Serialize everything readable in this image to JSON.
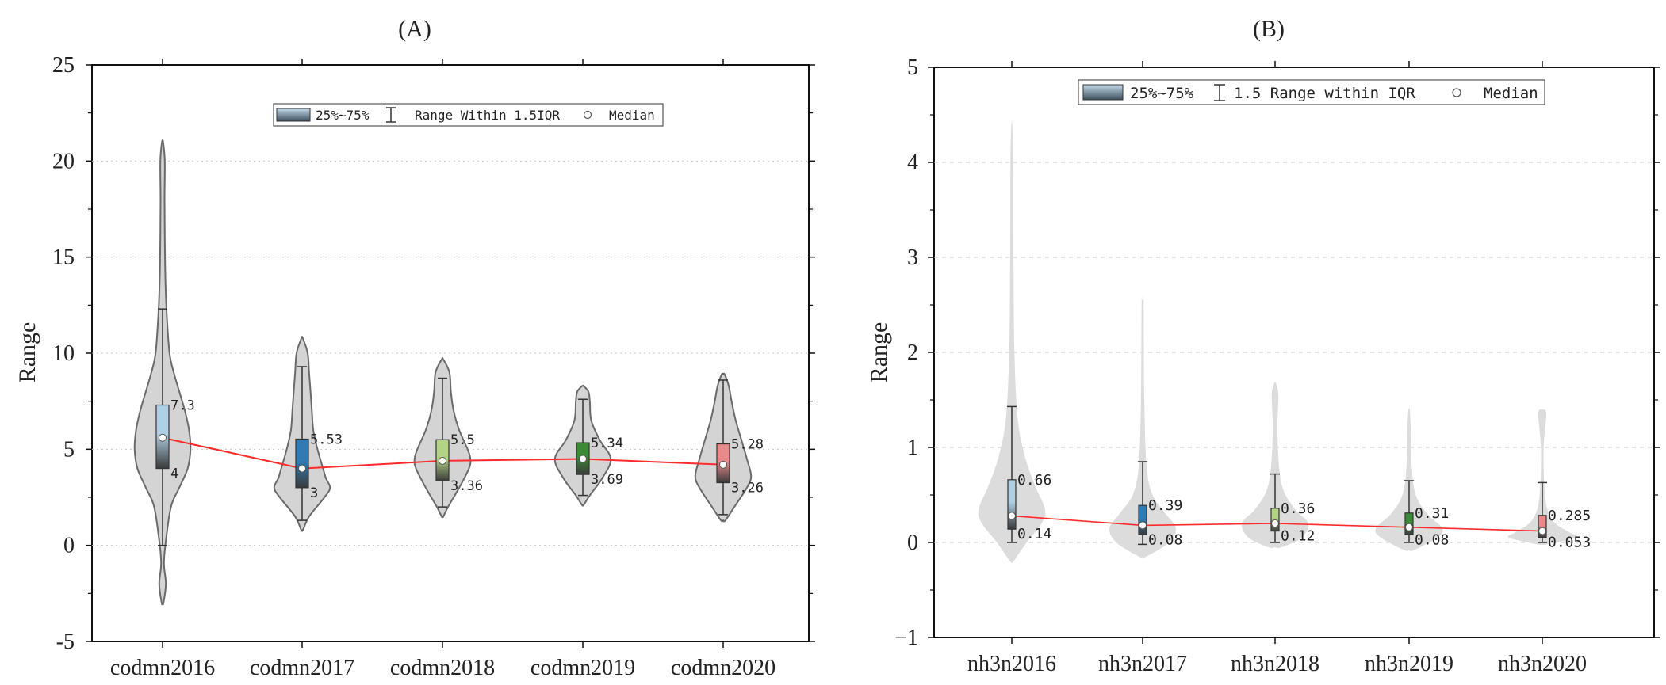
{
  "colors": {
    "violin_fill": "#d4d4d4",
    "violin_stroke": "#6a6a6a",
    "violin_fill_light": "#dcdcdc",
    "median_line": "#ff2a2a",
    "grid": "#c8c8c8"
  },
  "chart_data": [
    {
      "panel": "(A)",
      "type": "violin",
      "title": "(A)",
      "ylabel": "Range",
      "xlabel": "",
      "ylim": [
        -5,
        25
      ],
      "yticks": [
        "-5",
        "0",
        "5",
        "10",
        "15",
        "20",
        "25"
      ],
      "grid": "horizontal dotted",
      "violin_style": "outlined",
      "legend": {
        "placement": "top-center",
        "box_label": "25%~75%",
        "range_label": "Range Within 1.5IQR",
        "median_label": "Median"
      },
      "categories": [
        "codmn2016",
        "codmn2017",
        "codmn2018",
        "codmn2019",
        "codmn2020"
      ],
      "series": [
        {
          "name": "codmn2016",
          "q1": 4,
          "q3": 7.3,
          "median": 5.6,
          "whisker_low": 0,
          "whisker_high": 12.3,
          "min": -3,
          "max": 21,
          "q1_label": "4",
          "q3_label": "7.3",
          "box_color": "#aecfe4",
          "density": [
            [
              -3,
              0.03
            ],
            [
              -2,
              0.12
            ],
            [
              -1,
              0.05
            ],
            [
              0,
              0.1
            ],
            [
              2,
              0.3
            ],
            [
              3,
              0.6
            ],
            [
              4,
              0.9
            ],
            [
              5,
              1
            ],
            [
              6,
              0.95
            ],
            [
              7,
              0.8
            ],
            [
              8,
              0.6
            ],
            [
              9,
              0.4
            ],
            [
              10,
              0.25
            ],
            [
              12,
              0.15
            ],
            [
              14,
              0.1
            ],
            [
              16,
              0.08
            ],
            [
              18,
              0.07
            ],
            [
              20,
              0.08
            ],
            [
              21,
              0.02
            ]
          ]
        },
        {
          "name": "codmn2017",
          "q1": 3,
          "q3": 5.53,
          "median": 4,
          "whisker_low": 1.3,
          "whisker_high": 9.3,
          "min": 0.8,
          "max": 10.8,
          "q1_label": "3",
          "q3_label": "5.53",
          "box_color": "#2e7bb5",
          "density": [
            [
              0.8,
              0.03
            ],
            [
              1.5,
              0.25
            ],
            [
              2.5,
              0.8
            ],
            [
              3,
              1
            ],
            [
              3.5,
              0.85
            ],
            [
              4,
              0.75
            ],
            [
              5,
              0.55
            ],
            [
              6,
              0.4
            ],
            [
              7,
              0.35
            ],
            [
              8,
              0.3
            ],
            [
              9,
              0.25
            ],
            [
              10,
              0.2
            ],
            [
              10.8,
              0.02
            ]
          ]
        },
        {
          "name": "codmn2018",
          "q1": 3.36,
          "q3": 5.5,
          "median": 4.4,
          "whisker_low": 2,
          "whisker_high": 8.7,
          "min": 1.5,
          "max": 9.7,
          "q1_label": "3.36",
          "q3_label": "5.5",
          "box_color": "#b2d383",
          "density": [
            [
              1.5,
              0.03
            ],
            [
              2,
              0.2
            ],
            [
              3,
              0.6
            ],
            [
              4,
              0.95
            ],
            [
              4.5,
              1
            ],
            [
              5,
              0.9
            ],
            [
              6,
              0.6
            ],
            [
              7,
              0.4
            ],
            [
              8,
              0.3
            ],
            [
              9,
              0.25
            ],
            [
              9.7,
              0.02
            ]
          ]
        },
        {
          "name": "codmn2019",
          "q1": 3.69,
          "q3": 5.34,
          "median": 4.5,
          "whisker_low": 2.6,
          "whisker_high": 7.6,
          "min": 2.1,
          "max": 8.3,
          "q1_label": "3.69",
          "q3_label": "5.34",
          "box_color": "#3a8a36",
          "density": [
            [
              2.1,
              0.03
            ],
            [
              2.6,
              0.25
            ],
            [
              3.5,
              0.7
            ],
            [
              4.5,
              1
            ],
            [
              5.5,
              0.6
            ],
            [
              6.5,
              0.3
            ],
            [
              7.5,
              0.25
            ],
            [
              8,
              0.2
            ],
            [
              8.3,
              0.02
            ]
          ]
        },
        {
          "name": "codmn2020",
          "q1": 3.26,
          "q3": 5.28,
          "median": 4.2,
          "whisker_low": 1.6,
          "whisker_high": 8.6,
          "min": 1.3,
          "max": 8.9,
          "q1_label": "3.26",
          "q3_label": "5.28",
          "box_color": "#e88a8a",
          "density": [
            [
              1.3,
              0.08
            ],
            [
              2,
              0.4
            ],
            [
              3,
              0.85
            ],
            [
              3.6,
              1
            ],
            [
              4.5,
              0.85
            ],
            [
              5.5,
              0.65
            ],
            [
              6.5,
              0.45
            ],
            [
              7.5,
              0.3
            ],
            [
              8.3,
              0.2
            ],
            [
              8.9,
              0.05
            ]
          ]
        }
      ]
    },
    {
      "panel": "(B)",
      "type": "violin",
      "title": "(B)",
      "ylabel": "Range",
      "xlabel": "",
      "ylim": [
        -1,
        5
      ],
      "yticks": [
        "−1",
        "0",
        "1",
        "2",
        "3",
        "4",
        "5"
      ],
      "grid": "horizontal dashed",
      "violin_style": "filled",
      "legend": {
        "placement": "top-center",
        "box_label": "25%~75%",
        "range_label": "1.5 Range within IQR",
        "median_label": "Median"
      },
      "categories": [
        "nh3n2016",
        "nh3n2017",
        "nh3n2018",
        "nh3n2019",
        "nh3n2020"
      ],
      "series": [
        {
          "name": "nh3n2016",
          "q1": 0.14,
          "q3": 0.66,
          "median": 0.28,
          "whisker_low": 0,
          "whisker_high": 1.43,
          "min": -0.2,
          "max": 4.4,
          "q1_label": "0.14",
          "q3_label": "0.66",
          "box_color": "#aecfe4",
          "density": [
            [
              -0.2,
              0.05
            ],
            [
              0,
              0.45
            ],
            [
              0.2,
              0.9
            ],
            [
              0.35,
              1
            ],
            [
              0.6,
              0.7
            ],
            [
              0.9,
              0.4
            ],
            [
              1.3,
              0.18
            ],
            [
              2,
              0.08
            ],
            [
              3,
              0.05
            ],
            [
              4,
              0.04
            ],
            [
              4.4,
              0.01
            ]
          ]
        },
        {
          "name": "nh3n2017",
          "q1": 0.08,
          "q3": 0.39,
          "median": 0.18,
          "whisker_low": -0.02,
          "whisker_high": 0.85,
          "min": -0.15,
          "max": 2.55,
          "q1_label": "0.08",
          "q3_label": "0.39",
          "box_color": "#2e7bb5",
          "density": [
            [
              -0.15,
              0.1
            ],
            [
              0,
              0.8
            ],
            [
              0.15,
              1
            ],
            [
              0.3,
              0.7
            ],
            [
              0.5,
              0.3
            ],
            [
              0.8,
              0.12
            ],
            [
              1.5,
              0.05
            ],
            [
              2.5,
              0.03
            ],
            [
              2.55,
              0.01
            ]
          ]
        },
        {
          "name": "nh3n2018",
          "q1": 0.12,
          "q3": 0.36,
          "median": 0.2,
          "whisker_low": 0,
          "whisker_high": 0.72,
          "min": -0.05,
          "max": 1.68,
          "q1_label": "0.12",
          "q3_label": "0.36",
          "box_color": "#b2d383",
          "density": [
            [
              -0.05,
              0.2
            ],
            [
              0.05,
              0.8
            ],
            [
              0.2,
              1
            ],
            [
              0.35,
              0.6
            ],
            [
              0.55,
              0.25
            ],
            [
              0.8,
              0.12
            ],
            [
              1.2,
              0.07
            ],
            [
              1.55,
              0.1
            ],
            [
              1.68,
              0.02
            ]
          ]
        },
        {
          "name": "nh3n2019",
          "q1": 0.08,
          "q3": 0.31,
          "median": 0.16,
          "whisker_low": 0,
          "whisker_high": 0.65,
          "min": -0.08,
          "max": 1.4,
          "q1_label": "0.08",
          "q3_label": "0.31",
          "box_color": "#3a8a36",
          "density": [
            [
              -0.08,
              0.15
            ],
            [
              0.05,
              0.85
            ],
            [
              0.15,
              1
            ],
            [
              0.3,
              0.55
            ],
            [
              0.5,
              0.2
            ],
            [
              0.8,
              0.08
            ],
            [
              1.2,
              0.05
            ],
            [
              1.4,
              0.02
            ]
          ]
        },
        {
          "name": "nh3n2020",
          "q1": 0.053,
          "q3": 0.285,
          "median": 0.12,
          "whisker_low": 0,
          "whisker_high": 0.63,
          "min": -0.02,
          "max": 1.4,
          "q1_label": "0.053",
          "q3_label": "0.285",
          "box_color": "#e88a8a",
          "density": [
            [
              -0.02,
              0.15
            ],
            [
              0.05,
              1
            ],
            [
              0.1,
              0.85
            ],
            [
              0.2,
              0.4
            ],
            [
              0.35,
              0.15
            ],
            [
              0.6,
              0.06
            ],
            [
              1,
              0.04
            ],
            [
              1.35,
              0.12
            ],
            [
              1.4,
              0.02
            ]
          ]
        }
      ]
    }
  ]
}
